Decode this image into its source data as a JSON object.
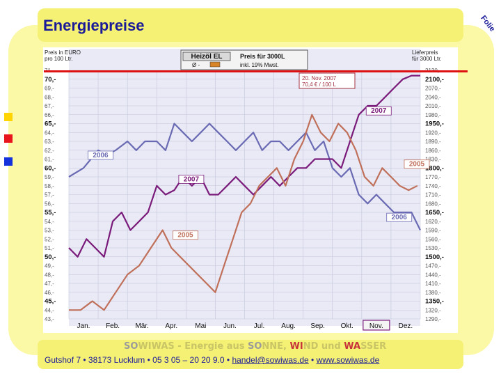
{
  "slide": {
    "title": "Energiepreise",
    "folio": "Folie",
    "slogan_parts": [
      "SO",
      "WIWAS - Energie aus ",
      "SO",
      "NNE, ",
      "WI",
      "ND und ",
      "WA",
      "SSER"
    ],
    "address": "Gutshof 7 • 38173 Lucklum • 05 3 05 – 20 20 9.0 • ",
    "email": "handel@sowiwas.de",
    "separator": " • ",
    "website": "www.sowiwas.de",
    "bullet_colors": [
      "#ffd400",
      "#e8141e",
      "#1432dc"
    ]
  },
  "chart_data": {
    "type": "line",
    "title": "Heizöl EL",
    "subtitle1": "Preis für 3000L",
    "subtitle2": "Ø -",
    "subtitle3": "inkl. 19% Mwst.",
    "left_axis_title": [
      "Preis in EURO",
      "pro 100 Ltr."
    ],
    "right_axis_title": [
      "Lieferpreis",
      "für 3000 Ltr."
    ],
    "categories": [
      "Jan.",
      "Feb.",
      "Mär.",
      "Apr.",
      "Mai",
      "Jun.",
      "Jul.",
      "Aug.",
      "Sep.",
      "Okt.",
      "Nov.",
      "Dez."
    ],
    "highlighted_category": "Nov.",
    "ylim": [
      43,
      71
    ],
    "left_ticks": [
      "43,-",
      "44,-",
      "45,-",
      "46,-",
      "47,-",
      "48,-",
      "49,-",
      "50,-",
      "51,-",
      "52,-",
      "53,-",
      "54,-",
      "55,-",
      "56,-",
      "57,-",
      "58,-",
      "59,-",
      "60,-",
      "61,-",
      "62,-",
      "63,-",
      "64,-",
      "65,-",
      "66,-",
      "67,-",
      "68,-",
      "69,-",
      "70,-",
      "71"
    ],
    "right_ticks": [
      "1290,-",
      "1320,-",
      "1350,-",
      "1380,-",
      "1410,-",
      "1440,-",
      "1470,-",
      "1500,-",
      "1530,-",
      "1560,-",
      "1590,-",
      "1620,-",
      "1650,-",
      "1680,-",
      "1710,-",
      "1740,-",
      "1770,-",
      "1800,-",
      "1830,-",
      "1860,-",
      "1890,-",
      "1920,-",
      "1950,-",
      "1980,-",
      "2010,-",
      "2040,-",
      "2070,-",
      "2100,-",
      "2130,-"
    ],
    "bold_ticks": [
      45,
      50,
      55,
      60,
      65,
      70
    ],
    "annotation": [
      "20. Nov. 2007",
      "70,4  € / 100 L"
    ],
    "series": [
      {
        "name": "2006",
        "color": "#6a6ab4",
        "labels": [
          {
            "text": "2006",
            "x": 0.7,
            "y": 61.2
          },
          {
            "text": "2006",
            "x": 10.9,
            "y": 54.2
          }
        ],
        "x": [
          0,
          0.5,
          1,
          1.3,
          1.6,
          2,
          2.3,
          2.6,
          3,
          3.3,
          3.6,
          3.9,
          4.2,
          4.5,
          4.8,
          5.1,
          5.4,
          5.7,
          6,
          6.3,
          6.6,
          6.9,
          7.2,
          7.5,
          7.8,
          8.1,
          8.4,
          8.7,
          9,
          9.3,
          9.6,
          9.9,
          10.2,
          10.5,
          10.8,
          11.1,
          11.4,
          11.7,
          12
        ],
        "y": [
          59,
          60,
          62,
          61.5,
          62,
          63,
          62,
          63,
          63,
          62,
          65,
          64,
          63,
          64,
          65,
          64,
          63,
          62,
          63,
          64,
          62,
          63,
          63,
          62,
          63,
          64,
          62,
          63,
          60,
          59,
          60,
          57,
          56,
          57,
          56,
          55,
          55,
          55,
          53
        ]
      },
      {
        "name": "2007",
        "color": "#7a1a7a",
        "labels": [
          {
            "text": "2007",
            "x": 3.8,
            "y": 58.5
          },
          {
            "text": "2007",
            "x": 10.2,
            "y": 66.2
          }
        ],
        "x": [
          0,
          0.3,
          0.6,
          0.9,
          1.2,
          1.5,
          1.8,
          2.1,
          2.4,
          2.7,
          3,
          3.3,
          3.6,
          3.9,
          4.2,
          4.5,
          4.8,
          5.1,
          5.4,
          5.7,
          6,
          6.3,
          6.6,
          6.9,
          7.2,
          7.5,
          7.8,
          8.1,
          8.4,
          8.7,
          9,
          9.3,
          9.6,
          9.9,
          10.2,
          10.5,
          10.8,
          11.1,
          11.4,
          11.7,
          12
        ],
        "y": [
          51,
          50,
          52,
          51,
          50,
          54,
          55,
          53,
          54,
          55,
          58,
          57,
          57.5,
          59,
          58,
          59,
          57,
          57,
          58,
          59,
          58,
          57,
          58,
          59,
          58,
          59,
          60,
          60,
          61,
          61,
          61,
          60,
          63,
          66,
          67,
          67,
          68,
          69,
          70,
          70.4,
          70.4
        ]
      },
      {
        "name": "2005",
        "color": "#c0705a",
        "labels": [
          {
            "text": "2005",
            "x": 3.6,
            "y": 52.2
          },
          {
            "text": "2005",
            "x": 11.5,
            "y": 60.2
          }
        ],
        "x": [
          0,
          0.4,
          0.8,
          1.2,
          1.6,
          2,
          2.4,
          2.8,
          3.2,
          3.5,
          3.8,
          4.1,
          4.4,
          4.7,
          5,
          5.3,
          5.6,
          5.9,
          6.2,
          6.5,
          6.8,
          7.1,
          7.4,
          7.7,
          8,
          8.3,
          8.6,
          8.9,
          9.2,
          9.5,
          9.8,
          10.1,
          10.4,
          10.7,
          11,
          11.3,
          11.6,
          11.9
        ],
        "y": [
          44,
          44,
          45,
          44,
          46,
          48,
          49,
          51,
          53,
          51,
          50,
          49,
          48,
          47,
          46,
          49,
          52,
          55,
          56,
          58,
          59,
          60,
          58,
          61,
          63,
          66,
          64,
          63,
          65,
          64,
          62,
          59,
          58,
          60,
          59,
          58,
          57.5,
          58
        ]
      }
    ]
  }
}
